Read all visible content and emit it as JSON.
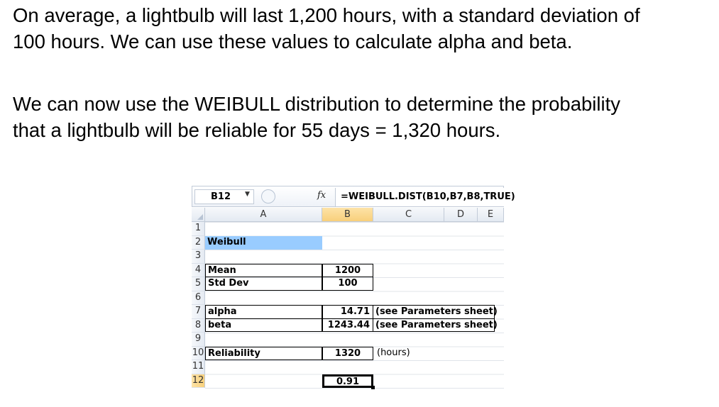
{
  "text": {
    "p1_line1": "On average, a lightbulb will last 1,200 hours, with a standard deviation of",
    "p1_line2": "100 hours. We can use these values to calculate alpha and beta.",
    "p2_line1": "We can now use the WEIBULL distribution to determine the probability",
    "p2_line2": "that a lightbulb will be reliable for 55 days = 1,320 hours."
  },
  "formula_bar": {
    "name_box": "B12",
    "fx": "fx",
    "formula": "=WEIBULL.DIST(B10,B7,B8,TRUE)"
  },
  "columns": [
    "A",
    "B",
    "C",
    "D",
    "E"
  ],
  "rows": [
    "1",
    "2",
    "3",
    "4",
    "5",
    "6",
    "7",
    "8",
    "9",
    "10",
    "11",
    "12"
  ],
  "cells": {
    "A2": "Weibull",
    "A4": "Mean",
    "B4": "1200",
    "A5": "Std Dev",
    "B5": "100",
    "A7": "alpha",
    "B7": "14.71",
    "C7": "(see Parameters sheet)",
    "A8": "beta",
    "B8": "1243.44",
    "C8": "(see Parameters sheet)",
    "A10": "Reliability",
    "B10": "1320",
    "C10": "(hours)",
    "B12": "0.91"
  },
  "colors": {
    "highlight": "#99ccff",
    "selected_header": "#f8d07b"
  }
}
